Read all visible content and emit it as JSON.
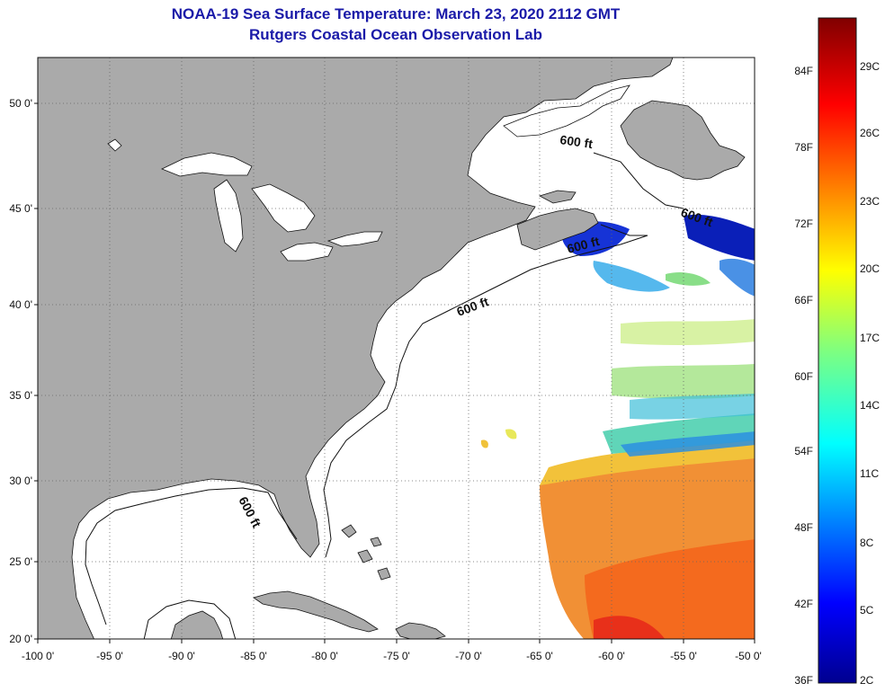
{
  "title": {
    "line1": "NOAA-19 Sea Surface Temperature:  March 23, 2020 2112 GMT",
    "line2": "Rutgers Coastal Ocean Observation Lab"
  },
  "map": {
    "lon_range": [
      -100,
      -50
    ],
    "lat_range": [
      20,
      52.5
    ],
    "x_ticks": [
      "-100 0'",
      "-95 0'",
      "-90 0'",
      "-85 0'",
      "-80 0'",
      "-75 0'",
      "-70 0'",
      "-65 0'",
      "-60 0'",
      "-55 0'",
      "-50 0'"
    ],
    "y_ticks": [
      "50 0'",
      "45 0'",
      "40 0'",
      "35 0'",
      "30 0'",
      "25 0'",
      "20 0'"
    ],
    "contour_label": "600 ft",
    "contour_labels": [
      "600 ft",
      "600 ft",
      "600 ft",
      "600 ft",
      "600 ft"
    ],
    "colors": {
      "land": "#aaaaaa",
      "ocean": "#ffffff",
      "title": "#1a1aa8"
    }
  },
  "colorbar": {
    "fahrenheit_labels": [
      "84F",
      "78F",
      "72F",
      "66F",
      "60F",
      "54F",
      "48F",
      "42F",
      "36F"
    ],
    "celsius_labels": [
      "29C",
      "26C",
      "23C",
      "20C",
      "17C",
      "14C",
      "11C",
      "8C",
      "5C",
      "2C"
    ],
    "min_f": 36,
    "max_f": 88
  }
}
